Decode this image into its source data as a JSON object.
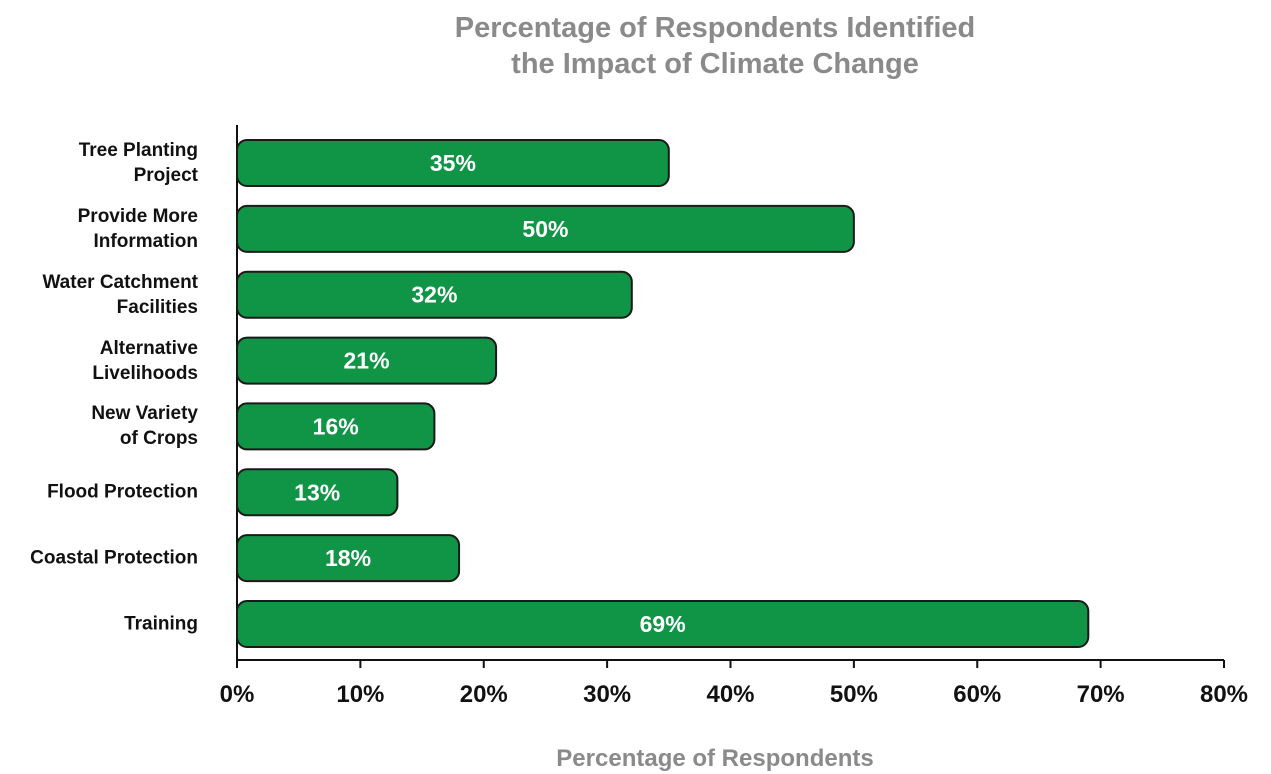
{
  "chart_data": {
    "type": "hbar",
    "title": "Percentage of Respondents Identified\nthe Impact of Climate Change",
    "xlabel": "Percentage of Respondents",
    "categories": [
      "Tree Planting\nProject",
      "Provide More\nInformation",
      "Water Catchment\nFacilities",
      "Alternative\nLivelihoods",
      "New Variety\nof Crops",
      "Flood Protection",
      "Coastal Protection",
      "Training"
    ],
    "values": [
      35,
      50,
      32,
      21,
      16,
      13,
      18,
      69
    ],
    "value_labels": [
      "35%",
      "50%",
      "32%",
      "21%",
      "16%",
      "13%",
      "18%",
      "69%"
    ],
    "color": "#109446",
    "xlim": [
      0,
      80
    ],
    "xticks": [
      {
        "value": 0,
        "label": "0%"
      },
      {
        "value": 10,
        "label": "10%"
      },
      {
        "value": 20,
        "label": "20%"
      },
      {
        "value": 30,
        "label": "30%"
      },
      {
        "value": 40,
        "label": "40%"
      },
      {
        "value": 50,
        "label": "50%"
      },
      {
        "value": 60,
        "label": "60%"
      },
      {
        "value": 70,
        "label": "70%"
      },
      {
        "value": 80,
        "label": "80%"
      }
    ]
  }
}
